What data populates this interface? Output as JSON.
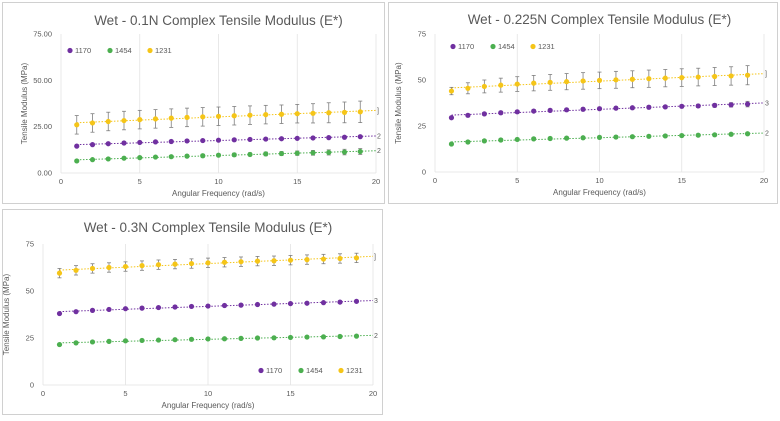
{
  "chart_data": [
    {
      "type": "scatter",
      "title": "Wet - 0.1N Complex Tensile Modulus (E*)",
      "xlabel": "Angular Frequency (rad/s)",
      "ylabel": "Tensile Modulus (MPa)",
      "xlim": [
        0,
        20
      ],
      "ylim": [
        0,
        75
      ],
      "x_ticks": [
        "0",
        "5",
        "10",
        "15",
        "20"
      ],
      "y_ticks": [
        "0.00",
        "25.00",
        "50.00",
        "75.00"
      ],
      "x_tick_values": [
        0,
        5,
        10,
        15,
        20
      ],
      "y_tick_values": [
        0,
        25,
        50,
        75
      ],
      "grid": "vertical",
      "legend_position": "top-left",
      "x": [
        1,
        2,
        3,
        4,
        5,
        6,
        7,
        8,
        9,
        10,
        11,
        12,
        13,
        14,
        15,
        16,
        17,
        18,
        19
      ],
      "series": [
        {
          "name": "1170",
          "color": "#7030a0",
          "values": [
            14.5,
            15.3,
            15.8,
            16.2,
            16.5,
            16.8,
            17.0,
            17.3,
            17.5,
            17.7,
            17.9,
            18.1,
            18.3,
            18.5,
            18.7,
            18.9,
            19.1,
            19.3,
            19.6
          ],
          "errors": [
            0.5,
            0.5,
            0.5,
            0.5,
            0.5,
            0.5,
            0.5,
            0.5,
            0.5,
            0.5,
            0.5,
            0.5,
            0.5,
            0.5,
            0.5,
            0.5,
            0.5,
            0.5,
            0.5
          ],
          "trend_end_label": "2"
        },
        {
          "name": "1454",
          "color": "#4caf50",
          "values": [
            6.5,
            7.2,
            7.6,
            8.0,
            8.3,
            8.6,
            8.8,
            9.1,
            9.3,
            9.6,
            9.8,
            10.0,
            10.3,
            10.5,
            10.7,
            10.9,
            11.1,
            11.3,
            11.6
          ],
          "errors": [
            0.6,
            0.6,
            0.6,
            0.6,
            0.6,
            0.6,
            0.7,
            0.7,
            0.8,
            0.8,
            0.9,
            0.9,
            1.0,
            1.1,
            1.2,
            1.3,
            1.4,
            1.5,
            1.6
          ],
          "trend_end_label": "2"
        },
        {
          "name": "1231",
          "color": "#f5c518",
          "values": [
            26.0,
            27.0,
            27.8,
            28.3,
            28.8,
            29.2,
            29.6,
            30.0,
            30.3,
            30.6,
            30.9,
            31.2,
            31.5,
            31.7,
            32.0,
            32.2,
            32.5,
            32.7,
            33.0
          ],
          "errors": [
            5.0,
            5.0,
            5.0,
            5.0,
            5.0,
            5.0,
            5.0,
            5.0,
            5.0,
            5.0,
            5.0,
            5.0,
            5.0,
            5.0,
            5.0,
            5.2,
            5.4,
            5.6,
            5.8
          ],
          "trend_end_label": "]"
        }
      ]
    },
    {
      "type": "scatter",
      "title": "Wet - 0.225N Complex Tensile Modulus (E*)",
      "xlabel": "Angular Frequency (rad/s)",
      "ylabel": "Tensile Modulus (MPa)",
      "xlim": [
        0,
        20
      ],
      "ylim": [
        0,
        75
      ],
      "x_ticks": [
        "0",
        "5",
        "10",
        "15",
        "20"
      ],
      "y_ticks": [
        "0",
        "25",
        "50",
        "75"
      ],
      "x_tick_values": [
        0,
        5,
        10,
        15,
        20
      ],
      "y_tick_values": [
        0,
        25,
        50,
        75
      ],
      "grid": "vertical",
      "legend_position": "top-left",
      "x": [
        1,
        2,
        3,
        4,
        5,
        6,
        7,
        8,
        9,
        10,
        11,
        12,
        13,
        14,
        15,
        16,
        17,
        18,
        19
      ],
      "series": [
        {
          "name": "1170",
          "color": "#7030a0",
          "values": [
            29.5,
            30.8,
            31.6,
            32.2,
            32.7,
            33.1,
            33.5,
            33.8,
            34.1,
            34.4,
            34.7,
            34.9,
            35.2,
            35.4,
            35.7,
            35.9,
            36.2,
            36.5,
            36.9
          ],
          "errors": [
            0.8,
            0.8,
            0.8,
            0.8,
            0.8,
            0.8,
            0.8,
            0.8,
            0.8,
            0.8,
            0.8,
            0.8,
            0.8,
            0.8,
            0.8,
            0.9,
            1.0,
            1.2,
            1.5
          ],
          "trend_end_label": "3"
        },
        {
          "name": "1454",
          "color": "#4caf50",
          "values": [
            15.2,
            16.3,
            16.9,
            17.4,
            17.7,
            18.0,
            18.2,
            18.4,
            18.6,
            18.8,
            19.0,
            19.2,
            19.4,
            19.6,
            19.8,
            20.0,
            20.2,
            20.5,
            20.8
          ],
          "errors": [
            0.7,
            0.7,
            0.7,
            0.7,
            0.7,
            0.7,
            0.7,
            0.7,
            0.7,
            0.7,
            0.7,
            0.7,
            0.7,
            0.7,
            0.7,
            0.7,
            0.7,
            0.7,
            0.7
          ],
          "trend_end_label": "2"
        },
        {
          "name": "1231",
          "color": "#f5c518",
          "values": [
            44.0,
            45.5,
            46.5,
            47.2,
            47.8,
            48.3,
            48.7,
            49.1,
            49.5,
            49.8,
            50.1,
            50.4,
            50.7,
            51.0,
            51.3,
            51.6,
            51.9,
            52.2,
            52.6
          ],
          "errors": [
            2.0,
            3.0,
            3.5,
            3.8,
            4.0,
            4.2,
            4.3,
            4.4,
            4.5,
            4.5,
            4.6,
            4.6,
            4.7,
            4.7,
            4.8,
            4.8,
            4.9,
            5.0,
            5.2
          ],
          "trend_end_label": "]"
        }
      ]
    },
    {
      "type": "scatter",
      "title": "Wet - 0.3N Complex Tensile Modulus (E*)",
      "xlabel": "Angular Frequency (rad/s)",
      "ylabel": "Tensile Modulus (MPa)",
      "xlim": [
        0,
        20
      ],
      "ylim": [
        0,
        75
      ],
      "x_ticks": [
        "0",
        "5",
        "10",
        "15",
        "20"
      ],
      "y_ticks": [
        "0",
        "25",
        "50",
        "75"
      ],
      "x_tick_values": [
        0,
        5,
        10,
        15,
        20
      ],
      "y_tick_values": [
        0,
        25,
        50,
        75
      ],
      "grid": "vertical",
      "legend_position": "bottom-right",
      "x": [
        1,
        2,
        3,
        4,
        5,
        6,
        7,
        8,
        9,
        10,
        11,
        12,
        13,
        14,
        15,
        16,
        17,
        18,
        19
      ],
      "series": [
        {
          "name": "1170",
          "color": "#7030a0",
          "values": [
            38.0,
            39.0,
            39.7,
            40.2,
            40.6,
            40.9,
            41.2,
            41.5,
            41.8,
            42.0,
            42.3,
            42.5,
            42.8,
            43.0,
            43.3,
            43.5,
            43.8,
            44.1,
            44.5
          ],
          "errors": [
            0.5,
            0.5,
            0.5,
            0.5,
            0.5,
            0.5,
            0.5,
            0.5,
            0.5,
            0.5,
            0.5,
            0.5,
            0.5,
            0.5,
            0.5,
            0.5,
            0.5,
            0.5,
            0.5
          ],
          "trend_end_label": "3"
        },
        {
          "name": "1454",
          "color": "#4caf50",
          "values": [
            21.5,
            22.4,
            22.9,
            23.2,
            23.5,
            23.7,
            23.9,
            24.1,
            24.3,
            24.5,
            24.6,
            24.8,
            25.0,
            25.1,
            25.3,
            25.5,
            25.6,
            25.8,
            26.0
          ],
          "errors": [
            0.5,
            0.5,
            0.5,
            0.5,
            0.5,
            0.5,
            0.5,
            0.5,
            0.5,
            0.5,
            0.5,
            0.5,
            0.5,
            0.5,
            0.5,
            0.5,
            0.5,
            0.5,
            0.5
          ],
          "trend_end_label": "2"
        },
        {
          "name": "1231",
          "color": "#f5c518",
          "values": [
            59.5,
            61.0,
            62.0,
            62.5,
            63.0,
            63.5,
            64.0,
            64.3,
            64.6,
            65.0,
            65.3,
            65.6,
            65.9,
            66.1,
            66.4,
            66.7,
            67.0,
            67.3,
            67.6
          ],
          "errors": [
            2.5,
            2.5,
            2.5,
            2.5,
            2.5,
            2.5,
            2.5,
            2.5,
            2.5,
            2.5,
            2.5,
            2.5,
            2.5,
            2.5,
            2.5,
            2.5,
            2.5,
            2.5,
            2.5
          ],
          "trend_end_label": "]"
        }
      ]
    }
  ]
}
